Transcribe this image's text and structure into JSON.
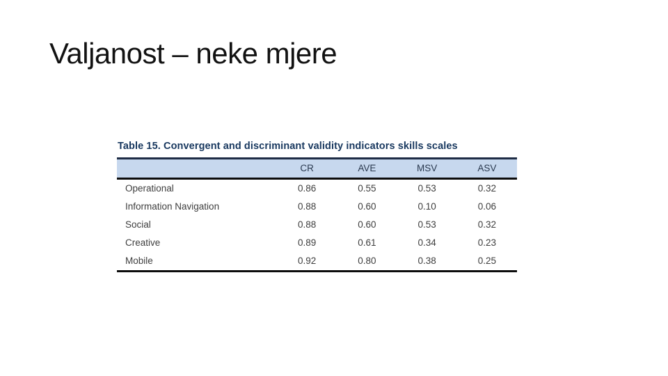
{
  "slide": {
    "title": "Valjanost – neke mjere"
  },
  "table": {
    "caption": "Table 15. Convergent and discriminant validity indicators skills scales",
    "columns": [
      "CR",
      "AVE",
      "MSV",
      "ASV"
    ],
    "rows": [
      {
        "label": "Operational",
        "values": [
          "0.86",
          "0.55",
          "0.53",
          "0.32"
        ]
      },
      {
        "label": "Information Navigation",
        "values": [
          "0.88",
          "0.60",
          "0.10",
          "0.06"
        ]
      },
      {
        "label": "Social",
        "values": [
          "0.88",
          "0.60",
          "0.53",
          "0.32"
        ]
      },
      {
        "label": "Creative",
        "values": [
          "0.89",
          "0.61",
          "0.34",
          "0.23"
        ]
      },
      {
        "label": "Mobile",
        "values": [
          "0.92",
          "0.80",
          "0.38",
          "0.25"
        ]
      }
    ],
    "colors": {
      "caption_text": "#17375E",
      "header_bg": "#C7D8EE",
      "heavy_border": "#0c0c0c",
      "top_border": "#1E2C45",
      "body_text": "#3D3D3D"
    }
  },
  "chart_data": {
    "type": "table",
    "title": "Table 15. Convergent and discriminant validity indicators skills scales",
    "columns": [
      "",
      "CR",
      "AVE",
      "MSV",
      "ASV"
    ],
    "rows": [
      [
        "Operational",
        0.86,
        0.55,
        0.53,
        0.32
      ],
      [
        "Information Navigation",
        0.88,
        0.6,
        0.1,
        0.06
      ],
      [
        "Social",
        0.88,
        0.6,
        0.53,
        0.32
      ],
      [
        "Creative",
        0.89,
        0.61,
        0.34,
        0.23
      ],
      [
        "Mobile",
        0.92,
        0.8,
        0.38,
        0.25
      ]
    ]
  }
}
